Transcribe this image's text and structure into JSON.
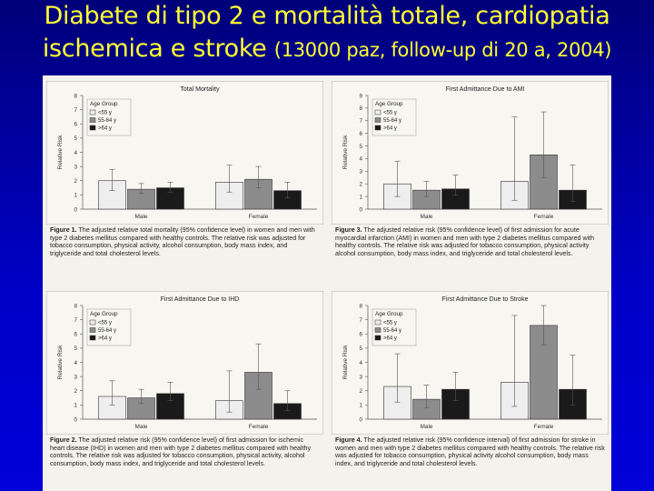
{
  "slide": {
    "title_line1": "Diabete di tipo 2 e mortalità totale, cardiopatia",
    "title_line2": "ischemica e stroke",
    "title_detail": "(13000 paz, follow-up di 20 a, 2004)"
  },
  "colors": {
    "title": "#ffff33",
    "background": "#0000c8",
    "series": [
      "#eeeeee",
      "#8c8c8c",
      "#1a1a1a"
    ]
  },
  "chart_data": [
    {
      "type": "bar",
      "title": "Total Mortality",
      "ylabel": "Relative Risk",
      "ylim": [
        0,
        8
      ],
      "yticks": [
        0,
        1,
        2,
        3,
        4,
        5,
        6,
        7,
        8
      ],
      "categories": [
        "Male",
        "Female"
      ],
      "legend_title": "Age Group",
      "legend_position": "top-left",
      "series": [
        {
          "name": "<55 y",
          "values": [
            2.0,
            1.9
          ],
          "ci_low": [
            1.3,
            1.2
          ],
          "ci_high": [
            2.8,
            3.1
          ]
        },
        {
          "name": "55-64 y",
          "values": [
            1.4,
            2.1
          ],
          "ci_low": [
            1.1,
            1.5
          ],
          "ci_high": [
            1.8,
            3.0
          ]
        },
        {
          "name": ">64 y",
          "values": [
            1.5,
            1.3
          ],
          "ci_low": [
            1.2,
            0.8
          ],
          "ci_high": [
            1.9,
            1.9
          ]
        }
      ],
      "caption_label": "Figure 1.",
      "caption_text": " The adjusted relative total mortality (95% confidence level) in women and men with type 2 diabetes mellitus compared with healthy controls. The relative risk was adjusted for tobacco consumption, physical activity, alcohol consumption, body mass index, and triglyceride and total cholesterol levels."
    },
    {
      "type": "bar",
      "title": "First Admittance Due to AMI",
      "ylabel": "Relative Risk",
      "ylim": [
        0,
        9
      ],
      "yticks": [
        0,
        1,
        2,
        3,
        4,
        5,
        6,
        7,
        8,
        9
      ],
      "categories": [
        "Male",
        "Female"
      ],
      "legend_title": "Age Group",
      "legend_position": "top-left",
      "series": [
        {
          "name": "<55 y",
          "values": [
            2.0,
            2.2
          ],
          "ci_low": [
            1.0,
            0.7
          ],
          "ci_high": [
            3.8,
            7.3
          ]
        },
        {
          "name": "55-64 y",
          "values": [
            1.5,
            4.3
          ],
          "ci_low": [
            1.0,
            2.5
          ],
          "ci_high": [
            2.2,
            7.7
          ]
        },
        {
          "name": ">64 y",
          "values": [
            1.6,
            1.5
          ],
          "ci_low": [
            1.1,
            0.6
          ],
          "ci_high": [
            2.7,
            3.5
          ]
        }
      ],
      "caption_label": "Figure 3.",
      "caption_text": " The adjusted relative risk (95% confidence level) of first admission for acute myocardial infarction (AMI) in women and men with type 2 diabetes mellitus compared with healthy controls. The relative risk was adjusted for tobacco consumption, physical activity alcohol consumption, body mass index, and triglyceride and total cholesterol levels."
    },
    {
      "type": "bar",
      "title": "First Admittance Due to IHD",
      "ylabel": "Relative Risk",
      "ylim": [
        0,
        8
      ],
      "yticks": [
        0,
        1,
        2,
        3,
        4,
        5,
        6,
        7,
        8
      ],
      "categories": [
        "Male",
        "Female"
      ],
      "legend_title": "Age Group",
      "legend_position": "top-left",
      "series": [
        {
          "name": "<55 y",
          "values": [
            1.6,
            1.3
          ],
          "ci_low": [
            1.0,
            0.5
          ],
          "ci_high": [
            2.7,
            3.4
          ]
        },
        {
          "name": "55-64 y",
          "values": [
            1.5,
            3.3
          ],
          "ci_low": [
            1.1,
            2.1
          ],
          "ci_high": [
            2.1,
            5.3
          ]
        },
        {
          "name": ">64 y",
          "values": [
            1.8,
            1.1
          ],
          "ci_low": [
            1.3,
            0.6
          ],
          "ci_high": [
            2.6,
            2.0
          ]
        }
      ],
      "caption_label": "Figure 2.",
      "caption_text": " The adjusted relative risk (95% confidence level) of first admission for ischemic heart disease (IHD) in women and men with type 2 diabetes mellitus compared with healthy controls. The relative risk was adjusted for tobacco consumption, physical activity, alcohol consumption, body mass index, and triglyceride and total cholesterol levels."
    },
    {
      "type": "bar",
      "title": "First Admittance Due to Stroke",
      "ylabel": "Relative Risk",
      "ylim": [
        0,
        8
      ],
      "yticks": [
        0,
        1,
        2,
        3,
        4,
        5,
        6,
        7,
        8
      ],
      "categories": [
        "Male",
        "Female"
      ],
      "legend_title": "Age Group",
      "legend_position": "top-left",
      "series": [
        {
          "name": "<55 y",
          "values": [
            2.3,
            2.6
          ],
          "ci_low": [
            1.2,
            0.9
          ],
          "ci_high": [
            4.6,
            7.3
          ]
        },
        {
          "name": "55-64 y",
          "values": [
            1.4,
            6.6
          ],
          "ci_low": [
            0.8,
            5.2
          ],
          "ci_high": [
            2.4,
            8.0
          ]
        },
        {
          "name": ">64 y",
          "values": [
            2.1,
            2.1
          ],
          "ci_low": [
            1.3,
            1.0
          ],
          "ci_high": [
            3.3,
            4.5
          ]
        }
      ],
      "caption_label": "Figure 4.",
      "caption_text": " The adjusted relative risk (95% confidence interval) of first admission for stroke in women and men with type 2 diabetes mellitus compared with healthy controls. The relative risk was adjusted for tobacco consumption, physical activity alcohol consumption, body mass index, and triglyceride and total cholesterol levels."
    }
  ]
}
